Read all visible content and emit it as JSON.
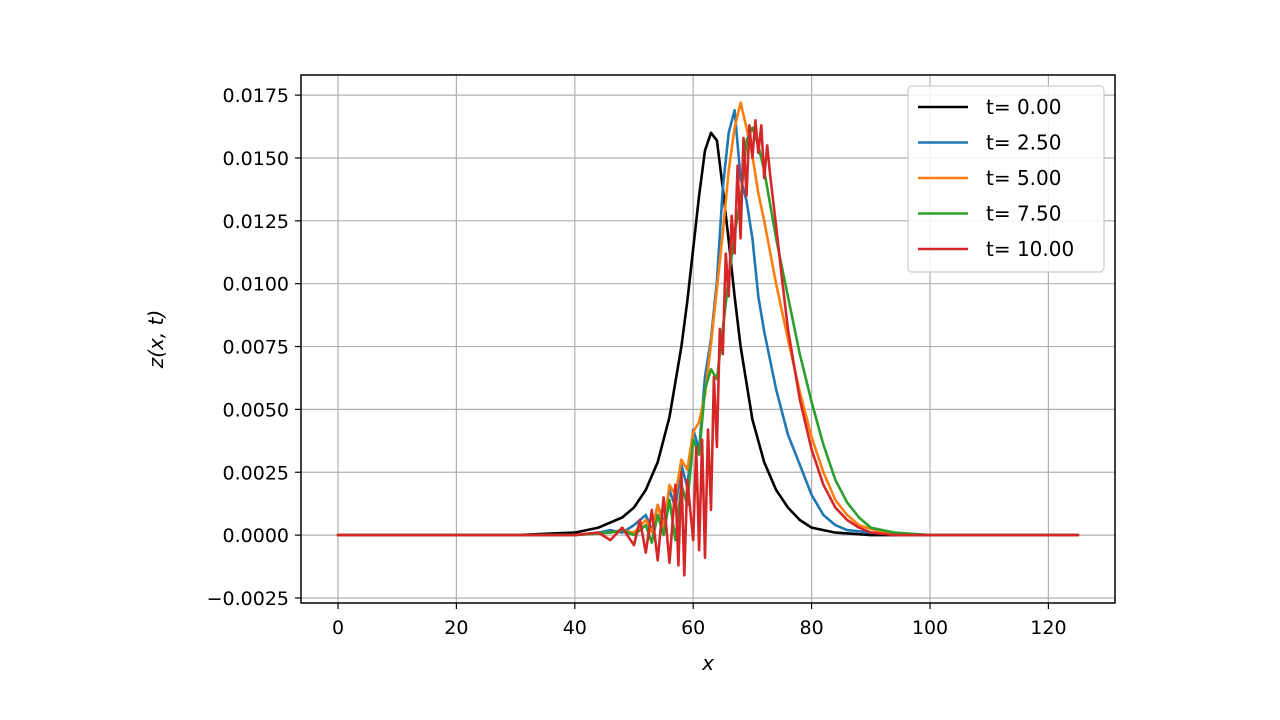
{
  "chart_data": {
    "type": "line",
    "title": "",
    "xlabel": "x",
    "ylabel": "z(x, t)",
    "xlim": [
      -6.25,
      131.25
    ],
    "ylim": [
      -0.0027,
      0.0183
    ],
    "x_ticks": [
      0,
      20,
      40,
      60,
      80,
      100,
      120
    ],
    "y_ticks": [
      -0.0025,
      0.0,
      0.0025,
      0.005,
      0.0075,
      0.01,
      0.0125,
      0.015,
      0.0175
    ],
    "x_tick_labels": [
      "0",
      "20",
      "40",
      "60",
      "80",
      "100",
      "120"
    ],
    "y_tick_labels": [
      "−0.0025",
      "0.0000",
      "0.0025",
      "0.0050",
      "0.0075",
      "0.0100",
      "0.0125",
      "0.0150",
      "0.0175"
    ],
    "grid": true,
    "legend_position": "top-right",
    "series": [
      {
        "name": "t= 0.00",
        "color": "#000000",
        "x": [
          0,
          30,
          40,
          44,
          48,
          50,
          52,
          54,
          56,
          58,
          59,
          60,
          61,
          62,
          63,
          64,
          65,
          66,
          67,
          68,
          70,
          72,
          74,
          76,
          78,
          80,
          84,
          90,
          100,
          125
        ],
        "y": [
          0,
          0,
          0.0001,
          0.0003,
          0.0007,
          0.0011,
          0.0018,
          0.0029,
          0.0047,
          0.0075,
          0.0093,
          0.0114,
          0.0135,
          0.0153,
          0.016,
          0.0157,
          0.0138,
          0.0117,
          0.0095,
          0.0075,
          0.0046,
          0.0029,
          0.0018,
          0.0011,
          0.0006,
          0.0003,
          0.0001,
          0,
          0,
          0
        ]
      },
      {
        "name": "t= 2.50",
        "color": "#1f77b4",
        "x": [
          0,
          40,
          44,
          46,
          48,
          50,
          52,
          53,
          54,
          55,
          56,
          57,
          58,
          59,
          60,
          61,
          62,
          63,
          64,
          65,
          66,
          67,
          68,
          69,
          70,
          71,
          72,
          74,
          76,
          78,
          80,
          82,
          84,
          86,
          90,
          100,
          125
        ],
        "y": [
          0,
          0,
          0.0001,
          0.0002,
          0.0001,
          0.0004,
          0.0008,
          0.0002,
          0.0012,
          0.0005,
          0.0018,
          0.0011,
          0.0028,
          0.0019,
          0.0042,
          0.0034,
          0.0063,
          0.0078,
          0.0101,
          0.0138,
          0.016,
          0.0169,
          0.0142,
          0.0133,
          0.0118,
          0.0095,
          0.0081,
          0.0058,
          0.004,
          0.0028,
          0.0016,
          0.0008,
          0.0004,
          0.0002,
          0.0001,
          0,
          0
        ]
      },
      {
        "name": "t= 5.00",
        "color": "#ff7f0e",
        "x": [
          0,
          40,
          46,
          48,
          50,
          52,
          53,
          54,
          55,
          56,
          57,
          58,
          59,
          60,
          61,
          62,
          63,
          64,
          65,
          66,
          67,
          68,
          69,
          70,
          71,
          72,
          74,
          76,
          78,
          80,
          82,
          84,
          86,
          88,
          92,
          100,
          125
        ],
        "y": [
          0,
          0,
          0.0001,
          0.0002,
          0.0001,
          0.0006,
          0.0001,
          0.0012,
          0.0003,
          0.002,
          0.0016,
          0.003,
          0.0026,
          0.0041,
          0.0045,
          0.0056,
          0.0076,
          0.0098,
          0.012,
          0.0145,
          0.0162,
          0.0172,
          0.0162,
          0.0151,
          0.0136,
          0.0125,
          0.01,
          0.0078,
          0.0057,
          0.0039,
          0.0025,
          0.0014,
          0.0008,
          0.0004,
          0.0001,
          0,
          0
        ]
      },
      {
        "name": "t= 7.50",
        "color": "#2ca02c",
        "x": [
          0,
          40,
          46,
          48,
          50,
          52,
          53,
          54,
          55,
          56,
          57,
          58,
          59,
          60,
          61,
          62,
          63,
          64,
          65,
          66,
          67,
          68,
          69,
          70,
          71,
          72,
          74,
          76,
          78,
          80,
          82,
          84,
          86,
          88,
          90,
          94,
          100,
          125
        ],
        "y": [
          0,
          0,
          0.0001,
          0.0002,
          0.0,
          0.0004,
          -0.0003,
          0.0008,
          0.0,
          0.0014,
          -0.0002,
          0.002,
          0.0012,
          0.0038,
          0.0032,
          0.0058,
          0.0066,
          0.0062,
          0.0082,
          0.0102,
          0.012,
          0.0133,
          0.0157,
          0.0162,
          0.0155,
          0.0145,
          0.0118,
          0.0095,
          0.0072,
          0.0053,
          0.0036,
          0.0022,
          0.0013,
          0.0007,
          0.0003,
          0.0001,
          0,
          0
        ]
      },
      {
        "name": "t= 10.00",
        "color": "#d62728",
        "x": [
          0,
          40,
          44,
          46,
          48,
          50,
          51,
          52,
          53,
          54,
          55,
          56,
          57,
          57.5,
          58,
          58.5,
          59,
          60,
          60.5,
          61,
          61.5,
          62,
          62.5,
          63,
          63.5,
          64,
          64.5,
          65,
          65.5,
          66,
          66.5,
          67,
          67.5,
          68,
          68.5,
          69,
          69.5,
          70,
          70.5,
          71,
          71.5,
          72,
          72.5,
          73,
          74,
          75,
          76,
          78,
          80,
          82,
          84,
          86,
          88,
          90,
          94,
          100,
          125
        ],
        "y": [
          0,
          0,
          0.0001,
          -0.0002,
          0.0003,
          -0.0004,
          0.0006,
          -0.0007,
          0.001,
          -0.001,
          0.0015,
          -0.0011,
          0.002,
          -0.0012,
          0.0025,
          -0.0016,
          0.0022,
          -0.0002,
          0.0035,
          -0.0006,
          0.0038,
          -0.0009,
          0.0042,
          0.001,
          0.0063,
          0.0035,
          0.0082,
          0.0072,
          0.0112,
          0.0095,
          0.0127,
          0.0112,
          0.0147,
          0.0118,
          0.0158,
          0.0135,
          0.0163,
          0.015,
          0.0165,
          0.0152,
          0.0163,
          0.0142,
          0.0155,
          0.0143,
          0.0123,
          0.0102,
          0.0082,
          0.0054,
          0.0034,
          0.002,
          0.0011,
          0.0006,
          0.0003,
          0.0001,
          0.0,
          0,
          0
        ]
      }
    ]
  }
}
